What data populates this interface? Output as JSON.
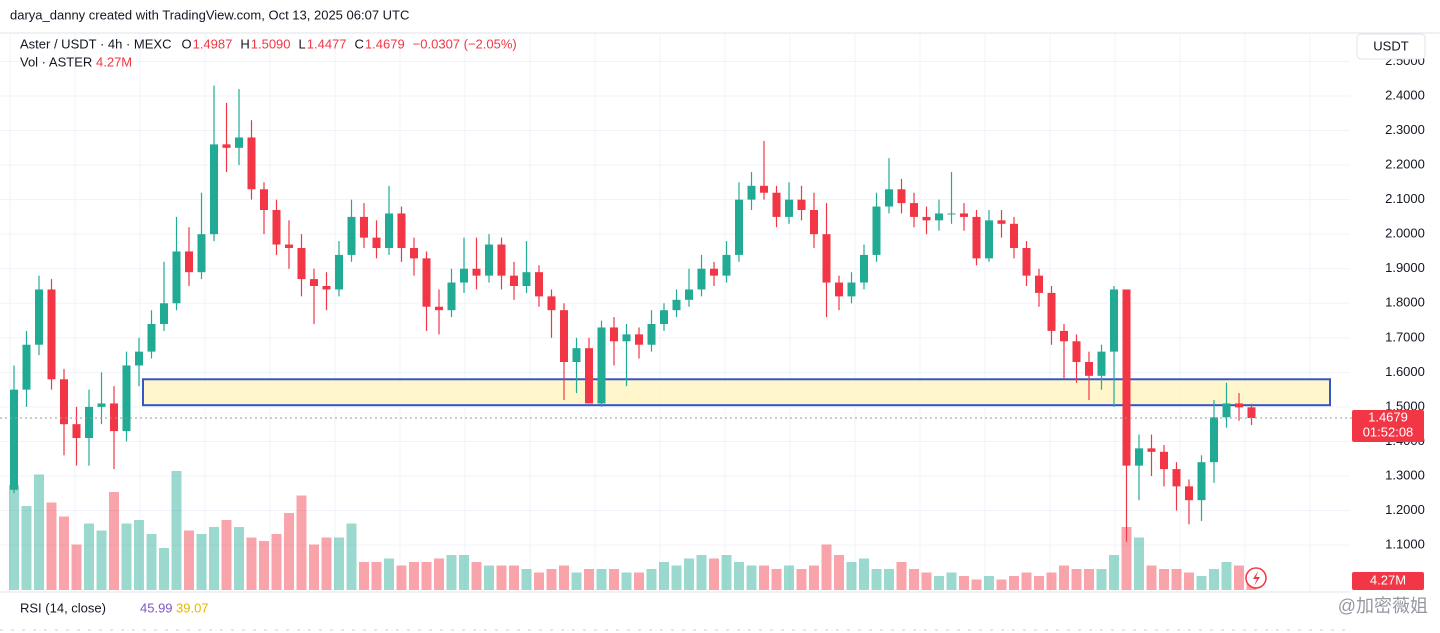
{
  "chart_data": {
    "type": "candlestick",
    "attribution": "darya_danny created with TradingView.com, Oct 13, 2025 06:07 UTC",
    "symbol": "Aster / USDT · 4h · MEXC",
    "ohlc_legend": [
      {
        "key": "O",
        "text": "1.4987"
      },
      {
        "key": "H",
        "text": "1.5090"
      },
      {
        "key": "L",
        "text": "1.4477"
      },
      {
        "key": "C",
        "text": "1.4679"
      }
    ],
    "change": "−0.0307 (−2.05%)",
    "volume_title": "Vol · ASTER",
    "volume_label": "4.27M",
    "currency": "USDT",
    "price_label": 1.4679,
    "countdown": "01:52:08",
    "rsi": {
      "title": "RSI (14, close)",
      "values": [
        45.99,
        39.07
      ]
    },
    "watermark": "@加密薇姐",
    "up_color": "#22ab94",
    "down_color": "#f23645",
    "zone": {
      "top": 1.58,
      "bottom": 1.505
    },
    "ylim": [
      0.97,
      2.51
    ],
    "yticks": [
      {
        "value": 1.1,
        "label": "1.1000"
      },
      {
        "value": 1.2,
        "label": "1.2000"
      },
      {
        "value": 1.3,
        "label": "1.3000"
      },
      {
        "value": 1.4,
        "label": "1.4000"
      },
      {
        "value": 1.5,
        "label": "1.5000"
      },
      {
        "value": 1.6,
        "label": "1.6000"
      },
      {
        "value": 1.7,
        "label": "1.7000"
      },
      {
        "value": 1.8,
        "label": "1.8000"
      },
      {
        "value": 1.9,
        "label": "1.9000"
      },
      {
        "value": 2.0,
        "label": "2.0000"
      },
      {
        "value": 2.1,
        "label": "2.1000"
      },
      {
        "value": 2.2,
        "label": "2.2000"
      },
      {
        "value": 2.3,
        "label": "2.3000"
      },
      {
        "value": 2.4,
        "label": "2.4000"
      },
      {
        "value": 2.5,
        "label": "2.5000"
      }
    ],
    "grid": true,
    "open": [
      1.26,
      1.55,
      1.68,
      1.84,
      1.58,
      1.45,
      1.41,
      1.5,
      1.51,
      1.43,
      1.62,
      1.66,
      1.74,
      1.8,
      1.95,
      1.89,
      2.0,
      2.26,
      2.25,
      2.28,
      2.13,
      2.07,
      1.97,
      1.96,
      1.87,
      1.85,
      1.84,
      1.94,
      2.05,
      1.99,
      1.96,
      2.06,
      1.96,
      1.93,
      1.79,
      1.78,
      1.86,
      1.9,
      1.88,
      1.97,
      1.88,
      1.85,
      1.89,
      1.82,
      1.78,
      1.63,
      1.67,
      1.51,
      1.73,
      1.69,
      1.71,
      1.68,
      1.74,
      1.78,
      1.81,
      1.84,
      1.9,
      1.88,
      1.94,
      2.1,
      2.14,
      2.12,
      2.05,
      2.1,
      2.07,
      2.0,
      1.86,
      1.82,
      1.86,
      1.94,
      2.08,
      2.13,
      2.09,
      2.05,
      2.04,
      2.06,
      2.06,
      2.05,
      1.93,
      2.04,
      2.03,
      1.96,
      1.88,
      1.83,
      1.72,
      1.69,
      1.63,
      1.59,
      1.66,
      1.84,
      1.33,
      1.38,
      1.37,
      1.32,
      1.27,
      1.23,
      1.34,
      1.47,
      1.51,
      1.4987
    ],
    "high": [
      1.62,
      1.72,
      1.88,
      1.87,
      1.61,
      1.5,
      1.55,
      1.6,
      1.56,
      1.66,
      1.7,
      1.78,
      1.92,
      2.05,
      2.02,
      2.12,
      2.43,
      2.38,
      2.42,
      2.33,
      2.15,
      2.1,
      2.04,
      2.0,
      1.9,
      1.89,
      1.98,
      2.1,
      2.09,
      2.04,
      2.14,
      2.08,
      1.99,
      1.95,
      1.84,
      1.9,
      1.99,
      1.99,
      2.0,
      1.99,
      1.92,
      1.98,
      1.91,
      1.84,
      1.8,
      1.7,
      1.7,
      1.75,
      1.76,
      1.74,
      1.73,
      1.78,
      1.8,
      1.84,
      1.9,
      1.94,
      1.92,
      1.98,
      2.15,
      2.18,
      2.27,
      2.14,
      2.15,
      2.14,
      2.12,
      2.09,
      1.88,
      1.89,
      1.97,
      2.12,
      2.22,
      2.16,
      2.12,
      2.08,
      2.1,
      2.18,
      2.09,
      2.07,
      2.07,
      2.07,
      2.05,
      1.98,
      1.9,
      1.85,
      1.74,
      1.71,
      1.66,
      1.68,
      1.85,
      1.84,
      1.42,
      1.42,
      1.39,
      1.34,
      1.29,
      1.36,
      1.52,
      1.57,
      1.54,
      1.509
    ],
    "low": [
      1.25,
      1.5,
      1.65,
      1.55,
      1.36,
      1.33,
      1.33,
      1.45,
      1.32,
      1.4,
      1.56,
      1.64,
      1.72,
      1.78,
      1.85,
      1.87,
      1.98,
      2.18,
      2.2,
      2.1,
      2.0,
      1.94,
      1.9,
      1.82,
      1.74,
      1.78,
      1.82,
      1.92,
      1.96,
      1.93,
      1.94,
      1.92,
      1.88,
      1.72,
      1.71,
      1.76,
      1.83,
      1.84,
      1.86,
      1.84,
      1.81,
      1.83,
      1.79,
      1.7,
      1.52,
      1.54,
      1.51,
      1.5,
      1.62,
      1.56,
      1.64,
      1.66,
      1.72,
      1.76,
      1.79,
      1.82,
      1.85,
      1.86,
      1.92,
      2.07,
      2.1,
      2.02,
      2.03,
      2.04,
      1.96,
      1.76,
      1.78,
      1.8,
      1.84,
      1.92,
      2.06,
      2.06,
      2.02,
      2.0,
      2.01,
      2.03,
      2.01,
      1.91,
      1.92,
      1.99,
      1.93,
      1.85,
      1.79,
      1.68,
      1.58,
      1.57,
      1.52,
      1.55,
      1.5,
      1.11,
      1.23,
      1.3,
      1.27,
      1.2,
      1.16,
      1.17,
      1.28,
      1.44,
      1.46,
      1.4477
    ],
    "close": [
      1.55,
      1.68,
      1.84,
      1.58,
      1.45,
      1.41,
      1.5,
      1.51,
      1.43,
      1.62,
      1.66,
      1.74,
      1.8,
      1.95,
      1.89,
      2.0,
      2.26,
      2.25,
      2.28,
      2.13,
      2.07,
      1.97,
      1.96,
      1.87,
      1.85,
      1.84,
      1.94,
      2.05,
      1.99,
      1.96,
      2.06,
      1.96,
      1.93,
      1.79,
      1.78,
      1.86,
      1.9,
      1.88,
      1.97,
      1.88,
      1.85,
      1.89,
      1.82,
      1.78,
      1.63,
      1.67,
      1.51,
      1.73,
      1.69,
      1.71,
      1.68,
      1.74,
      1.78,
      1.81,
      1.84,
      1.9,
      1.88,
      1.94,
      2.1,
      2.14,
      2.12,
      2.05,
      2.1,
      2.07,
      2.0,
      1.86,
      1.82,
      1.86,
      1.94,
      2.08,
      2.13,
      2.09,
      2.05,
      2.04,
      2.06,
      2.06,
      2.05,
      1.93,
      2.04,
      2.03,
      1.96,
      1.88,
      1.83,
      1.72,
      1.69,
      1.63,
      1.59,
      1.66,
      1.84,
      1.33,
      1.38,
      1.37,
      1.32,
      1.27,
      1.23,
      1.34,
      1.47,
      1.51,
      1.4987,
      1.4679
    ],
    "volume": [
      30,
      24,
      33,
      25,
      21,
      13,
      19,
      17,
      28,
      19,
      20,
      16,
      12,
      34,
      17,
      16,
      18,
      20,
      18,
      15,
      14,
      16,
      22,
      27,
      13,
      15,
      15,
      19,
      8,
      8,
      9,
      7,
      8,
      8,
      9,
      10,
      10,
      8,
      7,
      7,
      7,
      6,
      5,
      6,
      7,
      5,
      6,
      6,
      6,
      5,
      5,
      6,
      8,
      7,
      9,
      10,
      9,
      10,
      8,
      7,
      7,
      6,
      7,
      6,
      7,
      13,
      10,
      8,
      9,
      6,
      6,
      8,
      6,
      5,
      4,
      5,
      4,
      3,
      4,
      3,
      4,
      5,
      4,
      5,
      7,
      6,
      6,
      6,
      10,
      18,
      15,
      7,
      6,
      6,
      5,
      4,
      6,
      8,
      7,
      4.27
    ]
  }
}
